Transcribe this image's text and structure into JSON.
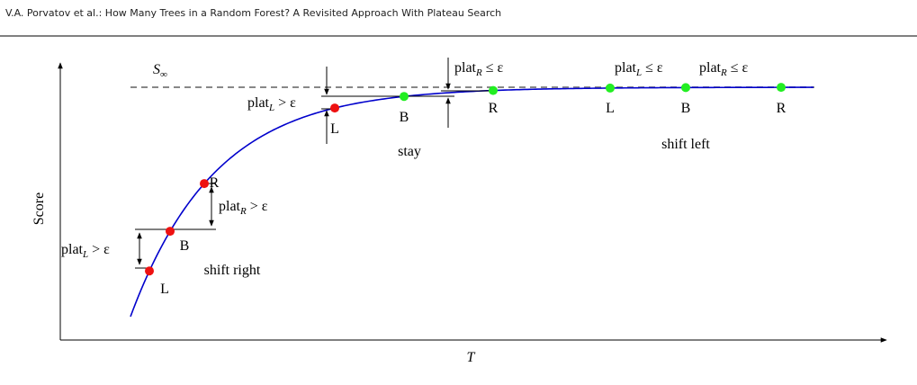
{
  "header": {
    "title": "V.A. Porvatov et al.: How Many Trees in a Random Forest? A Revisited Approach With Plateau Search"
  },
  "axes": {
    "y_label": "Score",
    "x_label": "T"
  },
  "asymptote": {
    "base": "S",
    "sub": "∞"
  },
  "points": [
    {
      "label": "L",
      "state": "red"
    },
    {
      "label": "B",
      "state": "red"
    },
    {
      "label": "R",
      "state": "red"
    },
    {
      "label": "L",
      "state": "red"
    },
    {
      "label": "B",
      "state": "green"
    },
    {
      "label": "R",
      "state": "green"
    },
    {
      "label": "L",
      "state": "green"
    },
    {
      "label": "B",
      "state": "green"
    },
    {
      "label": "R",
      "state": "green"
    }
  ],
  "annotations": [
    {
      "base": "plat",
      "sub": "L",
      "rest": " > ε"
    },
    {
      "base": "plat",
      "sub": "R",
      "rest": " > ε"
    },
    {
      "base": "plat",
      "sub": "L",
      "rest": " > ε"
    },
    {
      "base": "plat",
      "sub": "R",
      "rest": " ≤ ε"
    },
    {
      "base": "plat",
      "sub": "L",
      "rest": " ≤ ε"
    },
    {
      "base": "plat",
      "sub": "R",
      "rest": " ≤ ε"
    }
  ],
  "actions": [
    "shift right",
    "stay",
    "shift left"
  ]
}
